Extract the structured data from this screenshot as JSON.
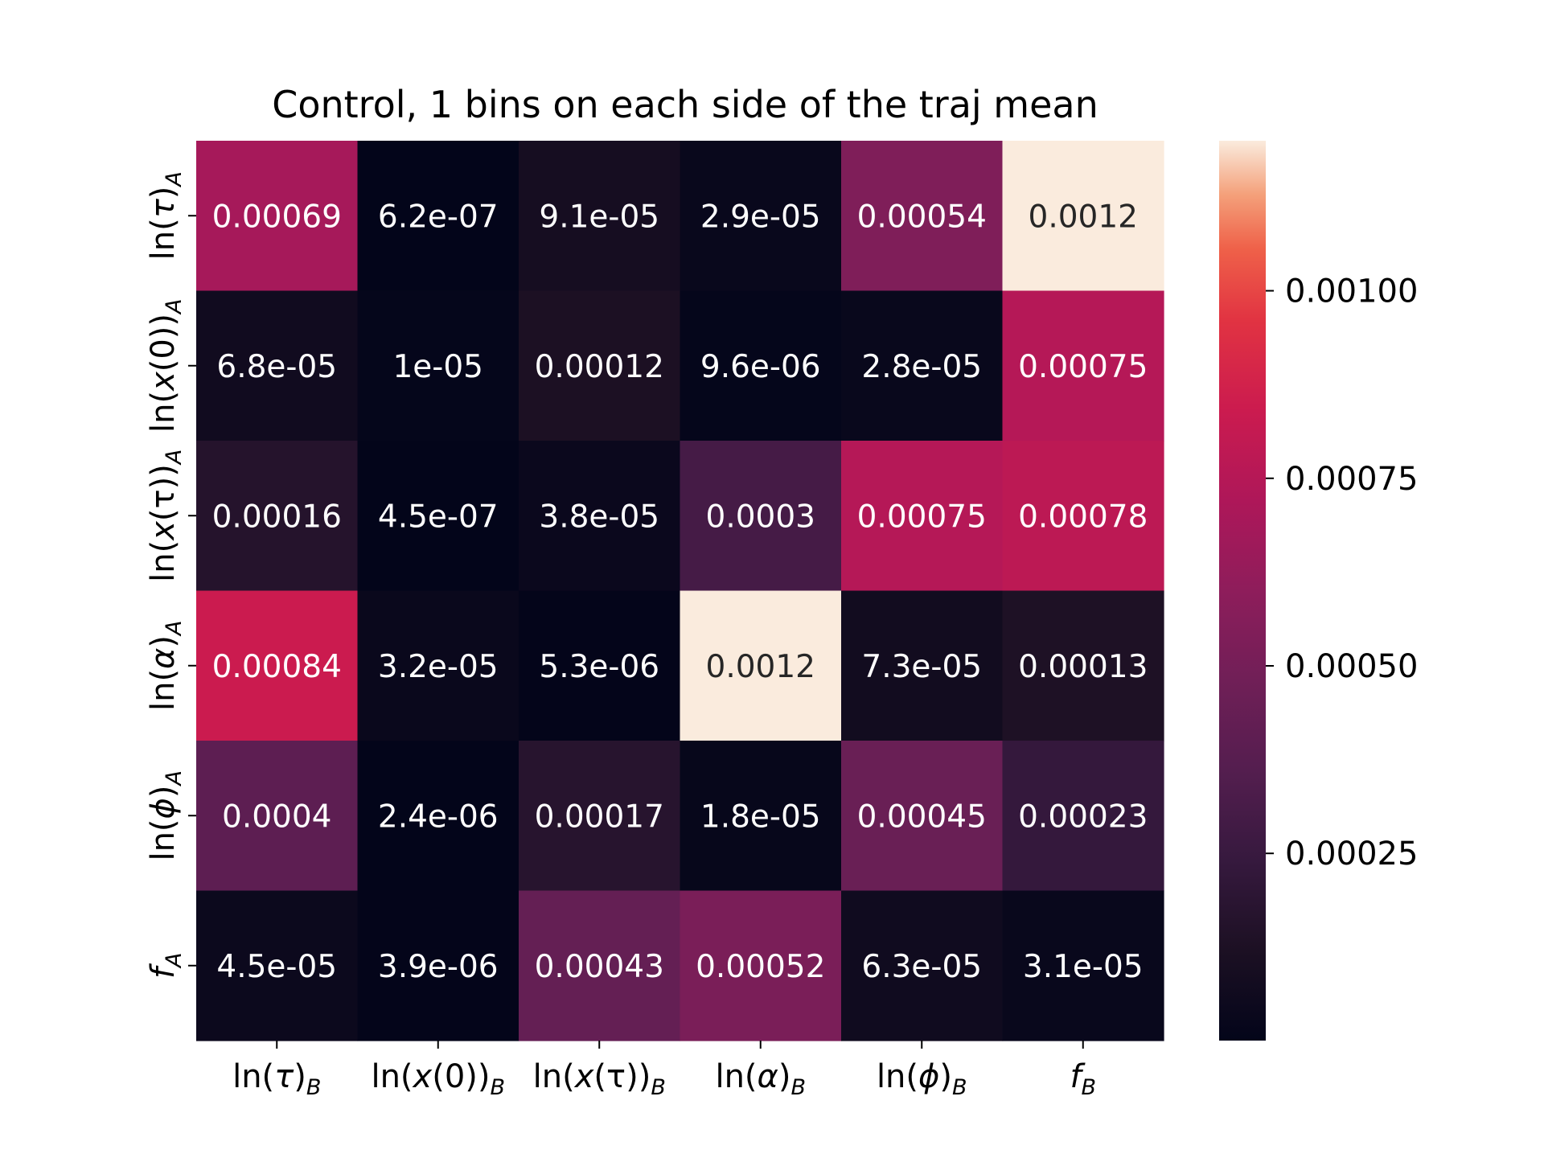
{
  "chart_data": {
    "type": "heatmap",
    "title": "Control, 1 bins on each side of the traj mean",
    "x_labels": [
      {
        "base": "ln(",
        "var": "τ",
        "close": ")",
        "sub": "B"
      },
      {
        "base": "ln(",
        "var": "x",
        "close": "(0))",
        "sub": "B"
      },
      {
        "base": "ln(",
        "var": "x",
        "close": "(τ))",
        "sub": "B"
      },
      {
        "base": "ln(",
        "var": "α",
        "close": ")",
        "sub": "B"
      },
      {
        "base": "ln(",
        "var": "ϕ",
        "close": ")",
        "sub": "B"
      },
      {
        "base": "",
        "var": "f",
        "close": "",
        "sub": "B"
      }
    ],
    "y_labels": [
      {
        "base": "ln(",
        "var": "τ",
        "close": ")",
        "sub": "A"
      },
      {
        "base": "ln(",
        "var": "x",
        "close": "(0))",
        "sub": "A"
      },
      {
        "base": "ln(",
        "var": "x",
        "close": "(τ))",
        "sub": "A"
      },
      {
        "base": "ln(",
        "var": "α",
        "close": ")",
        "sub": "A"
      },
      {
        "base": "ln(",
        "var": "ϕ",
        "close": ")",
        "sub": "A"
      },
      {
        "base": "",
        "var": "f",
        "close": "",
        "sub": "A"
      }
    ],
    "values": [
      [
        0.00069,
        6.2e-07,
        9.1e-05,
        2.9e-05,
        0.00054,
        0.0012
      ],
      [
        6.8e-05,
        1e-05,
        0.00012,
        9.6e-06,
        2.8e-05,
        0.00075
      ],
      [
        0.00016,
        4.5e-07,
        3.8e-05,
        0.0003,
        0.00075,
        0.00078
      ],
      [
        0.00084,
        3.2e-05,
        5.3e-06,
        0.0012,
        7.3e-05,
        0.00013
      ],
      [
        0.0004,
        2.4e-06,
        0.00017,
        1.8e-05,
        0.00045,
        0.00023
      ],
      [
        4.5e-05,
        3.9e-06,
        0.00043,
        0.00052,
        6.3e-05,
        3.1e-05
      ]
    ],
    "annotations": [
      [
        "0.00069",
        "6.2e-07",
        "9.1e-05",
        "2.9e-05",
        "0.00054",
        "0.0012"
      ],
      [
        "6.8e-05",
        "1e-05",
        "0.00012",
        "9.6e-06",
        "2.8e-05",
        "0.00075"
      ],
      [
        "0.00016",
        "4.5e-07",
        "3.8e-05",
        "0.0003",
        "0.00075",
        "0.00078"
      ],
      [
        "0.00084",
        "3.2e-05",
        "5.3e-06",
        "0.0012",
        "7.3e-05",
        "0.00013"
      ],
      [
        "0.0004",
        "2.4e-06",
        "0.00017",
        "1.8e-05",
        "0.00045",
        "0.00023"
      ],
      [
        "4.5e-05",
        "3.9e-06",
        "0.00043",
        "0.00052",
        "6.3e-05",
        "3.1e-05"
      ]
    ],
    "colorbar": {
      "colormap": "rocket",
      "vmin": 4.5e-07,
      "vmax": 0.0012,
      "ticks": [
        0.00025,
        0.0005,
        0.00075,
        0.001
      ],
      "tick_labels": [
        "0.00025",
        "0.00050",
        "0.00075",
        "0.00100"
      ]
    }
  }
}
